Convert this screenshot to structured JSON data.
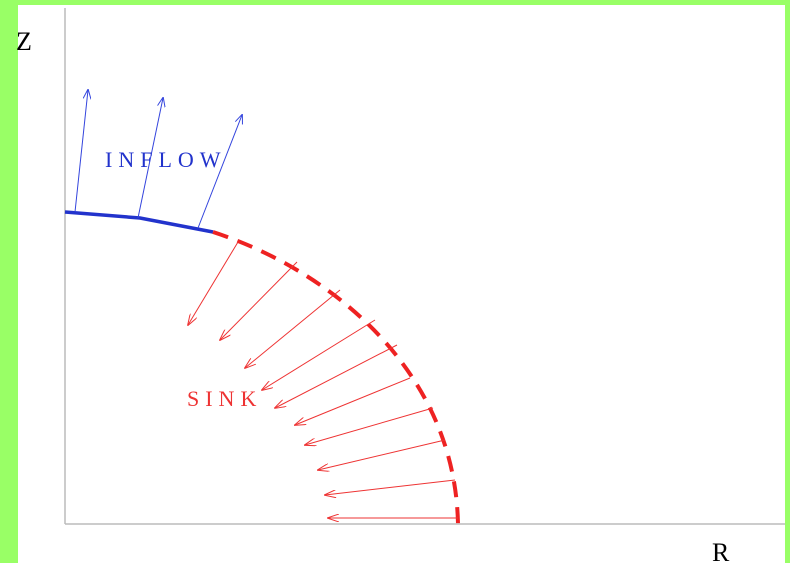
{
  "axes": {
    "z_label": "Z",
    "r_label": "R"
  },
  "regions": {
    "inflow": "INFLOW",
    "sink": "SINK"
  }
}
